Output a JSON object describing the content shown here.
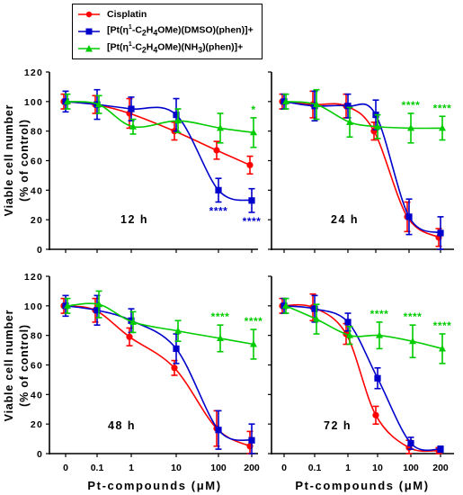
{
  "chart_data": {
    "type": "line",
    "ylabel_lines": [
      "Viable cell number",
      "(% of control)"
    ],
    "xlabel": "Pt-compounds (μM)",
    "x_categories": [
      "0",
      "0.1",
      "1",
      "10",
      "100",
      "200"
    ],
    "yticks": [
      "0",
      "20",
      "40",
      "60",
      "80",
      "100",
      "120"
    ],
    "ylim": [
      0,
      120
    ],
    "legend": {
      "position": "top-left",
      "entries": [
        {
          "name": "Cisplatin",
          "name_html": "Cisplatin",
          "color": "#ff0000",
          "marker": "circle"
        },
        {
          "name": "[Pt(η1-C2H4OMe)(DMSO)(phen)]+",
          "name_html": "[Pt(η<sup>1</sup>-C<sub>2</sub>H<sub>4</sub>OMe)(DMSO)(phen)]+",
          "color": "#0000cc",
          "marker": "square"
        },
        {
          "name": "[Pt(η1-C2H4OMe)(NH3)(phen)]+",
          "name_html": "[Pt(η<sup>1</sup>-C<sub>2</sub>H<sub>4</sub>OMe)(NH<sub>3</sub>)(phen)]+",
          "color": "#00cc00",
          "marker": "triangle"
        }
      ]
    },
    "panels": [
      {
        "label": "12 h",
        "series": [
          {
            "name": "Cisplatin",
            "values": [
              100,
              98,
              92,
              80,
              67,
              57
            ],
            "errors": [
              5,
              6,
              10,
              6,
              6,
              6
            ]
          },
          {
            "name": "[Pt(η1-C2H4OMe)(DMSO)(phen)]+",
            "values": [
              100,
              98,
              95,
              91,
              40,
              33
            ],
            "errors": [
              7,
              10,
              8,
              11,
              8,
              8
            ]
          },
          {
            "name": "[Pt(η1-C2H4OMe)(NH3)(phen)]+",
            "values": [
              100,
              98,
              83,
              87,
              82,
              79
            ],
            "errors": [
              5,
              6,
              5,
              8,
              10,
              10
            ]
          }
        ],
        "stars": [
          {
            "series": 2,
            "x": 5,
            "text": "*"
          },
          {
            "series": 1,
            "x": 4,
            "text": "****"
          },
          {
            "series": 1,
            "x": 5,
            "text": "****"
          }
        ]
      },
      {
        "label": "24 h",
        "series": [
          {
            "name": "Cisplatin",
            "values": [
              100,
              98,
              97,
              80,
              22,
              8
            ],
            "errors": [
              5,
              9,
              8,
              6,
              10,
              6
            ]
          },
          {
            "name": "[Pt(η1-C2H4OMe)(DMSO)(phen)]+",
            "values": [
              100,
              97,
              97,
              91,
              22,
              11
            ],
            "errors": [
              5,
              10,
              8,
              10,
              12,
              11
            ]
          },
          {
            "name": "[Pt(η1-C2H4OMe)(NH3)(phen)]+",
            "values": [
              100,
              98,
              86,
              83,
              82,
              82
            ],
            "errors": [
              5,
              10,
              10,
              8,
              10,
              8
            ]
          }
        ],
        "stars": [
          {
            "series": 2,
            "x": 4,
            "text": "****"
          },
          {
            "series": 2,
            "x": 5,
            "text": "****"
          }
        ]
      },
      {
        "label": "48 h",
        "series": [
          {
            "name": "Cisplatin",
            "values": [
              100,
              97,
              79,
              58,
              17,
              5
            ],
            "errors": [
              5,
              8,
              6,
              5,
              12,
              10
            ]
          },
          {
            "name": "[Pt(η1-C2H4OMe)(DMSO)(phen)]+",
            "values": [
              100,
              97,
              90,
              71,
              16,
              9
            ],
            "errors": [
              7,
              10,
              8,
              10,
              13,
              11
            ]
          },
          {
            "name": "[Pt(η1-C2H4OMe)(NH3)(phen)]+",
            "values": [
              100,
              101,
              89,
              83,
              78,
              74
            ],
            "errors": [
              5,
              9,
              7,
              7,
              9,
              10
            ]
          }
        ],
        "stars": [
          {
            "series": 2,
            "x": 4,
            "text": "****"
          },
          {
            "series": 2,
            "x": 5,
            "text": "****"
          }
        ]
      },
      {
        "label": "72 h",
        "series": [
          {
            "name": "Cisplatin",
            "values": [
              100,
              99,
              81,
              26,
              4,
              2
            ],
            "errors": [
              5,
              9,
              7,
              6,
              5,
              2
            ]
          },
          {
            "name": "[Pt(η1-C2H4OMe)(DMSO)(phen)]+",
            "values": [
              100,
              98,
              89,
              51,
              7,
              3
            ],
            "errors": [
              5,
              9,
              6,
              7,
              4,
              2
            ]
          },
          {
            "name": "[Pt(η1-C2H4OMe)(NH3)(phen)]+",
            "values": [
              100,
              91,
              80,
              80,
              76,
              71
            ],
            "errors": [
              5,
              10,
              6,
              9,
              11,
              10
            ]
          }
        ],
        "stars": [
          {
            "series": 2,
            "x": 3,
            "text": "****"
          },
          {
            "series": 2,
            "x": 4,
            "text": "****"
          },
          {
            "series": 2,
            "x": 5,
            "text": "****"
          }
        ]
      }
    ]
  }
}
